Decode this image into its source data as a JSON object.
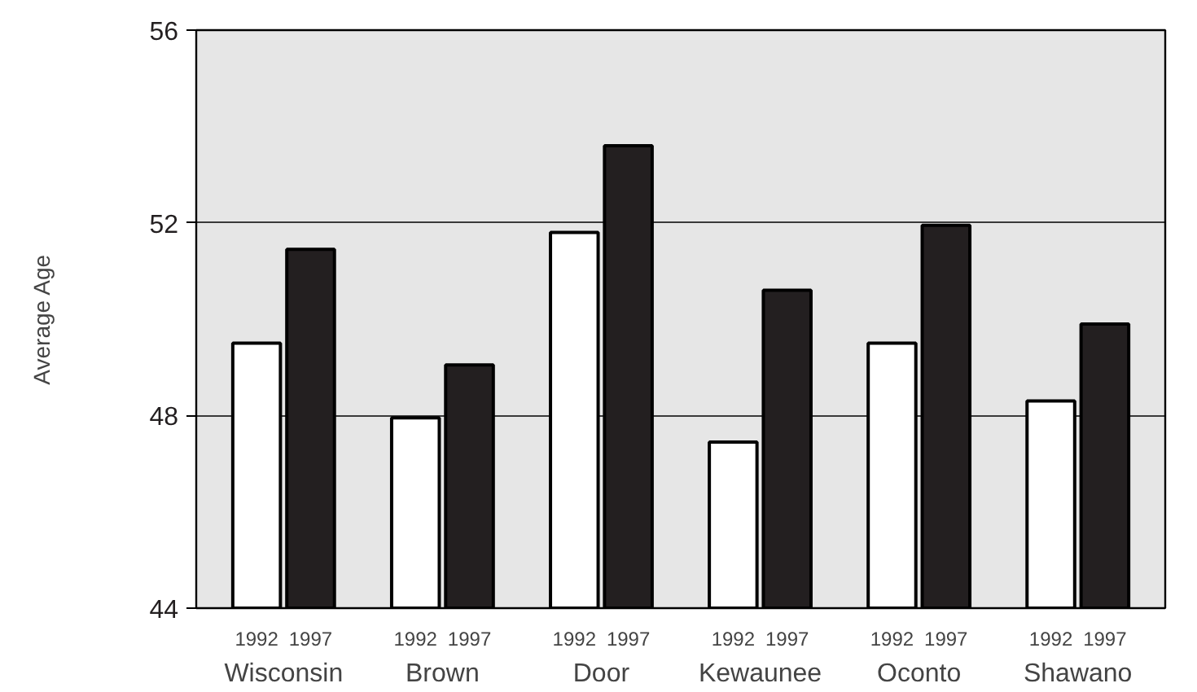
{
  "chart_data": {
    "type": "bar",
    "ylabel": "Average Age",
    "categories": [
      "Wisconsin",
      "Brown",
      "Door",
      "Kewaunee",
      "Oconto",
      "Shawano"
    ],
    "series": [
      {
        "name": "1992",
        "color": "#ffffff",
        "values": [
          49.5,
          47.95,
          51.8,
          47.45,
          49.5,
          48.3
        ]
      },
      {
        "name": "1997",
        "color": "#231f20",
        "values": [
          51.45,
          49.05,
          53.6,
          50.6,
          51.95,
          49.9
        ]
      }
    ],
    "ylim": [
      44,
      56
    ],
    "yticks": [
      44,
      48,
      52,
      56
    ],
    "grid": "y",
    "legend": false
  }
}
